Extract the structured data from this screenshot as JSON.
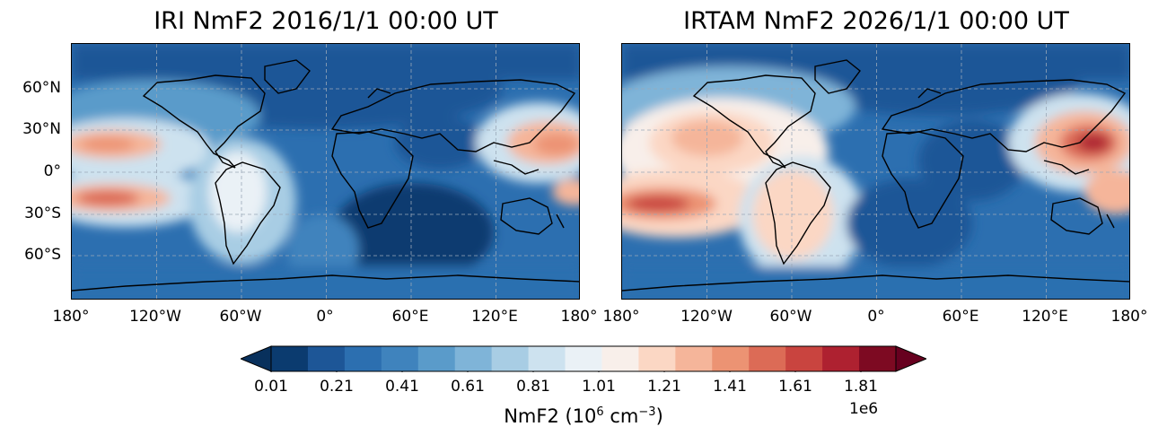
{
  "panels": [
    {
      "title": "IRI NmF2 2016/1/1 00:00 UT"
    },
    {
      "title": "IRTAM NmF2 2026/1/1 00:00 UT"
    }
  ],
  "lat_ticks": [
    "60°N",
    "30°N",
    "0°",
    "30°S",
    "60°S"
  ],
  "lon_ticks": [
    "180°",
    "120°W",
    "60°W",
    "0°",
    "60°E",
    "120°E",
    "180°"
  ],
  "colorbar": {
    "ticks": [
      "0.01",
      "0.21",
      "0.41",
      "0.61",
      "0.81",
      "1.01",
      "1.21",
      "1.41",
      "1.61",
      "1.81"
    ],
    "label": "NmF2 (10",
    "label_exp": "6",
    "label_unit": " cm",
    "label_unit_exp": "−3",
    "label_close": ")",
    "multiplier": "1e6",
    "colors": [
      "#0b3b6f",
      "#1d5697",
      "#2c6fb0",
      "#3f83bd",
      "#5a9bca",
      "#7fb4d8",
      "#a8cde4",
      "#cde2ef",
      "#eaf1f6",
      "#f8efea",
      "#fbd7c4",
      "#f5b59a",
      "#ec9373",
      "#dc6b56",
      "#c9443f",
      "#ae2130",
      "#7d0a22"
    ],
    "min_color": "#08305c",
    "max_color": "#67001f"
  },
  "map_style": {
    "ocean_base": "#2c6fb0",
    "gridline_color": "#9aa8b8"
  }
}
